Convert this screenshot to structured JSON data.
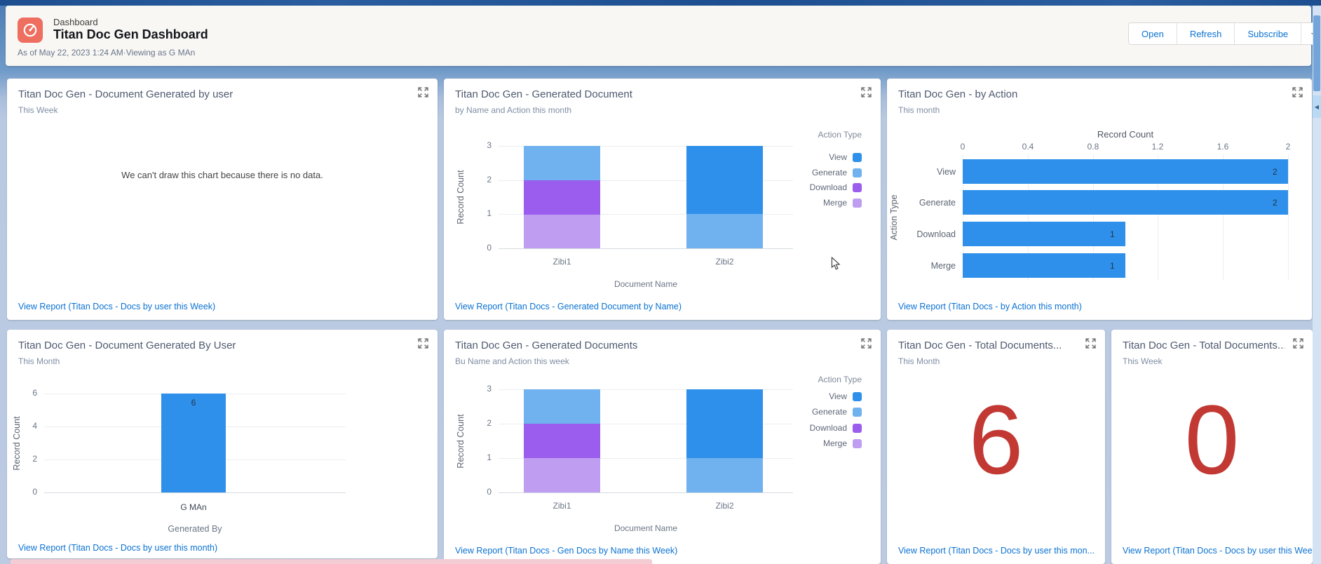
{
  "header": {
    "record_type_label": "Dashboard",
    "title": "Titan Doc Gen Dashboard",
    "meta": "As of May 22, 2023 1:24 AM·Viewing as G MAn",
    "actions": {
      "open": "Open",
      "refresh": "Refresh",
      "subscribe": "Subscribe"
    }
  },
  "colors": {
    "link": "#0b72d2",
    "metric_red": "#c23934",
    "header_icon": "#ee6e5f",
    "series": {
      "View": "#2e90ea",
      "Generate": "#6fb2ef",
      "Download": "#9a5ded",
      "Merge": "#bf9df1"
    }
  },
  "widgets": {
    "w1": {
      "title": "Titan Doc Gen - Document Generated by user",
      "subtitle": "This Week",
      "empty_message": "We can't draw this chart because there is no data.",
      "link": "View Report (Titan Docs - Docs by user this Week)"
    },
    "w2": {
      "title": "Titan Doc Gen - Generated Document",
      "subtitle": "by Name and Action this month",
      "link": "View Report (Titan Docs - Generated Document by Name)"
    },
    "w3": {
      "title": "Titan Doc Gen - by Action",
      "subtitle": "This month",
      "link": "View Report (Titan Docs - by Action this month)"
    },
    "w4": {
      "title": "Titan Doc Gen - Document Generated By User",
      "subtitle": "This Month",
      "link": "View Report (Titan Docs - Docs by user this month)"
    },
    "w5": {
      "title": "Titan Doc Gen - Generated Documents",
      "subtitle": "Bu Name and Action this week",
      "link": "View Report (Titan Docs - Gen Docs by Name this Week)"
    },
    "w6": {
      "title": "Titan Doc Gen - Total Documents...",
      "subtitle": "This Month",
      "value": "6",
      "link": "View Report (Titan Docs - Docs by user this mon..."
    },
    "w7": {
      "title": "Titan Doc Gen - Total Documents...",
      "subtitle": "This Week",
      "value": "0",
      "link": "View Report (Titan Docs - Docs by user this Wee..."
    }
  },
  "chart_data": [
    {
      "widget": "w1",
      "type": "empty",
      "title": "Titan Doc Gen - Document Generated by user",
      "message": "We can't draw this chart because there is no data."
    },
    {
      "widget": "w2",
      "type": "bar",
      "orientation": "vertical",
      "stacked": true,
      "title": "Titan Doc Gen - Generated Document",
      "subtitle": "by Name and Action this month",
      "categories": [
        "Zibi1",
        "Zibi2"
      ],
      "series": [
        {
          "name": "View",
          "color": "#2e90ea",
          "values": [
            0,
            2
          ]
        },
        {
          "name": "Generate",
          "color": "#6fb2ef",
          "values": [
            1,
            1
          ]
        },
        {
          "name": "Download",
          "color": "#9a5ded",
          "values": [
            1,
            0
          ]
        },
        {
          "name": "Merge",
          "color": "#bf9df1",
          "values": [
            1,
            0
          ]
        }
      ],
      "stack_order_bottom_to_top": [
        "Merge",
        "Download",
        "Generate",
        "View"
      ],
      "xlabel": "Document Name",
      "ylabel": "Record Count",
      "ylim": [
        0,
        3
      ],
      "yticks": [
        0,
        1,
        2,
        3
      ],
      "grid": true,
      "legend": {
        "title": "Action Type",
        "position": "right",
        "items": [
          "View",
          "Generate",
          "Download",
          "Merge"
        ]
      }
    },
    {
      "widget": "w3",
      "type": "bar",
      "orientation": "horizontal",
      "title": "Titan Doc Gen - by Action",
      "subtitle": "This month",
      "categories": [
        "View",
        "Generate",
        "Download",
        "Merge"
      ],
      "values": [
        2,
        2,
        1,
        1
      ],
      "data_labels": [
        "2",
        "2",
        "1",
        "1"
      ],
      "bar_color": "#2e90ea",
      "xlabel": "Record Count",
      "ylabel": "Action Type",
      "xlim": [
        0,
        2
      ],
      "xticks": [
        0,
        0.4,
        0.8,
        1.2,
        1.6,
        2
      ],
      "grid": true
    },
    {
      "widget": "w4",
      "type": "bar",
      "orientation": "vertical",
      "stacked": false,
      "title": "Titan Doc Gen - Document Generated By User",
      "subtitle": "This Month",
      "categories": [
        "G MAn"
      ],
      "values": [
        6
      ],
      "data_labels": [
        "6"
      ],
      "bar_color": "#2e90ea",
      "xlabel": "Generated By",
      "ylabel": "Record Count",
      "ylim": [
        0,
        6
      ],
      "yticks": [
        0,
        2,
        4,
        6
      ],
      "grid": true
    },
    {
      "widget": "w5",
      "type": "bar",
      "orientation": "vertical",
      "stacked": true,
      "title": "Titan Doc Gen - Generated Documents",
      "subtitle": "Bu Name and Action this week",
      "categories": [
        "Zibi1",
        "Zibi2"
      ],
      "series": [
        {
          "name": "View",
          "color": "#2e90ea",
          "values": [
            0,
            2
          ]
        },
        {
          "name": "Generate",
          "color": "#6fb2ef",
          "values": [
            1,
            1
          ]
        },
        {
          "name": "Download",
          "color": "#9a5ded",
          "values": [
            1,
            0
          ]
        },
        {
          "name": "Merge",
          "color": "#bf9df1",
          "values": [
            1,
            0
          ]
        }
      ],
      "stack_order_bottom_to_top": [
        "Merge",
        "Download",
        "Generate",
        "View"
      ],
      "xlabel": "Document Name",
      "ylabel": "Record Count",
      "ylim": [
        0,
        3
      ],
      "yticks": [
        0,
        1,
        2,
        3
      ],
      "grid": true,
      "legend": {
        "title": "Action Type",
        "position": "right",
        "items": [
          "View",
          "Generate",
          "Download",
          "Merge"
        ]
      }
    },
    {
      "widget": "w6",
      "type": "metric",
      "title": "Titan Doc Gen - Total Documents...",
      "subtitle": "This Month",
      "value": 6,
      "color": "#c23934"
    },
    {
      "widget": "w7",
      "type": "metric",
      "title": "Titan Doc Gen - Total Documents...",
      "subtitle": "This Week",
      "value": 0,
      "color": "#c23934"
    }
  ]
}
